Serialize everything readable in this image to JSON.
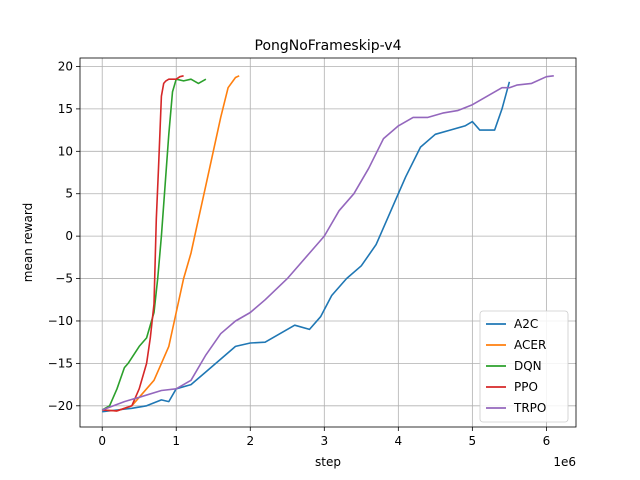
{
  "chart_data": {
    "type": "line",
    "title": "PongNoFrameskip-v4",
    "xlabel": "step",
    "ylabel": "mean reward",
    "x_offset_label": "1e6",
    "xlim": [
      -0.3,
      6.4
    ],
    "ylim": [
      -22.5,
      21.0
    ],
    "xticks": [
      0,
      1,
      2,
      3,
      4,
      5,
      6
    ],
    "xtick_labels": [
      "0",
      "1",
      "2",
      "3",
      "4",
      "5",
      "6"
    ],
    "yticks": [
      -20,
      -15,
      -10,
      -5,
      0,
      5,
      10,
      15,
      20
    ],
    "ytick_labels": [
      "−20",
      "−15",
      "−10",
      "−5",
      "0",
      "5",
      "10",
      "15",
      "20"
    ],
    "grid": true,
    "legend_position": "lower-right",
    "series": [
      {
        "name": "A2C",
        "color": "#1f77b4",
        "x": [
          0.0,
          0.2,
          0.4,
          0.6,
          0.8,
          0.9,
          1.0,
          1.2,
          1.4,
          1.6,
          1.8,
          2.0,
          2.2,
          2.4,
          2.6,
          2.8,
          2.95,
          3.1,
          3.3,
          3.5,
          3.7,
          3.85,
          3.95,
          4.1,
          4.3,
          4.5,
          4.7,
          4.9,
          5.0,
          5.1,
          5.3,
          5.4,
          5.5
        ],
        "y": [
          -20.7,
          -20.5,
          -20.3,
          -20.0,
          -19.3,
          -19.5,
          -18.0,
          -17.5,
          -16.0,
          -14.5,
          -13.0,
          -12.6,
          -12.5,
          -11.5,
          -10.5,
          -11.0,
          -9.5,
          -7.0,
          -5.0,
          -3.5,
          -1.0,
          2.0,
          4.0,
          7.0,
          10.5,
          12.0,
          12.5,
          13.0,
          13.5,
          12.5,
          12.5,
          15.0,
          18.2
        ]
      },
      {
        "name": "ACER",
        "color": "#ff7f0e",
        "x": [
          0.0,
          0.2,
          0.4,
          0.6,
          0.7,
          0.8,
          0.9,
          1.0,
          1.1,
          1.2,
          1.3,
          1.4,
          1.5,
          1.6,
          1.7,
          1.8,
          1.85
        ],
        "y": [
          -20.5,
          -20.6,
          -20.0,
          -18.0,
          -17.0,
          -15.0,
          -13.0,
          -9.0,
          -5.0,
          -2.0,
          2.0,
          6.0,
          10.0,
          14.0,
          17.5,
          18.7,
          18.9
        ]
      },
      {
        "name": "DQN",
        "color": "#2ca02c",
        "x": [
          0.0,
          0.1,
          0.2,
          0.3,
          0.35,
          0.5,
          0.6,
          0.7,
          0.75,
          0.8,
          0.85,
          0.9,
          0.95,
          1.0,
          1.1,
          1.2,
          1.3,
          1.4
        ],
        "y": [
          -20.5,
          -20.0,
          -18.0,
          -15.5,
          -15.0,
          -13.0,
          -12.0,
          -9.0,
          -5.0,
          0.0,
          6.0,
          12.0,
          17.0,
          18.5,
          18.3,
          18.5,
          18.0,
          18.5
        ]
      },
      {
        "name": "PPO",
        "color": "#d62728",
        "x": [
          0.0,
          0.2,
          0.4,
          0.5,
          0.6,
          0.65,
          0.7,
          0.73,
          0.76,
          0.8,
          0.83,
          0.86,
          0.9,
          1.0,
          1.05,
          1.1
        ],
        "y": [
          -20.5,
          -20.6,
          -20.0,
          -18.0,
          -15.0,
          -12.0,
          -8.0,
          2.0,
          8.0,
          16.5,
          18.0,
          18.3,
          18.5,
          18.5,
          18.8,
          18.9
        ]
      },
      {
        "name": "TRPO",
        "color": "#9467bd",
        "x": [
          0.0,
          0.3,
          0.5,
          0.8,
          1.0,
          1.2,
          1.4,
          1.6,
          1.8,
          2.0,
          2.2,
          2.5,
          2.8,
          3.0,
          3.2,
          3.4,
          3.6,
          3.8,
          4.0,
          4.2,
          4.4,
          4.6,
          4.8,
          5.0,
          5.2,
          5.4,
          5.5,
          5.6,
          5.8,
          6.0,
          6.1
        ],
        "y": [
          -20.5,
          -19.5,
          -19.0,
          -18.2,
          -18.0,
          -17.0,
          -14.0,
          -11.5,
          -10.0,
          -9.0,
          -7.5,
          -5.0,
          -2.0,
          0.0,
          3.0,
          5.0,
          8.0,
          11.5,
          13.0,
          14.0,
          14.0,
          14.5,
          14.8,
          15.5,
          16.5,
          17.5,
          17.5,
          17.8,
          18.0,
          18.8,
          18.9
        ]
      }
    ]
  }
}
